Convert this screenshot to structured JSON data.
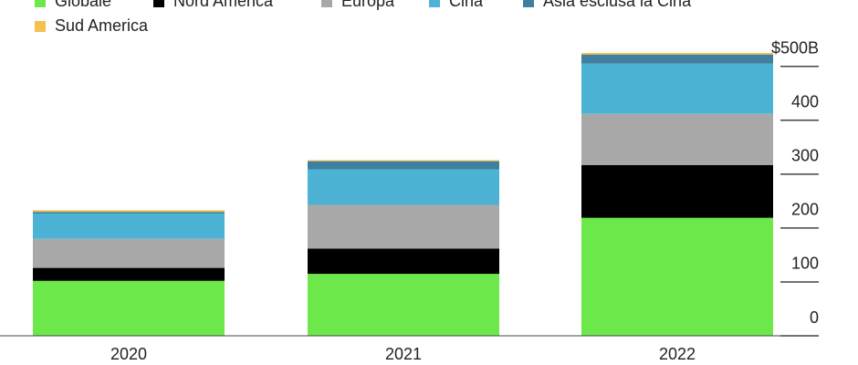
{
  "chart_data": {
    "type": "stacked-bar",
    "categories": [
      "2020",
      "2021",
      "2022"
    ],
    "series": [
      {
        "name": "Globale",
        "color": "#6de84a",
        "values": [
          102,
          115,
          219
        ]
      },
      {
        "name": "Nord America",
        "color": "#000000",
        "values": [
          24,
          47,
          98
        ]
      },
      {
        "name": "Europa",
        "color": "#a8a8a8",
        "values": [
          54,
          81,
          95
        ]
      },
      {
        "name": "Cina",
        "color": "#4db3d4",
        "values": [
          47,
          66,
          93
        ]
      },
      {
        "name": "Asia esclusa la Cina",
        "color": "#3f7f9f",
        "values": [
          3,
          15,
          17
        ]
      },
      {
        "name": "Sud America",
        "color": "#f2c14e",
        "values": [
          3,
          2,
          3
        ]
      }
    ],
    "ylim": [
      0,
      530
    ],
    "yticks": [
      0,
      100,
      200,
      300,
      400,
      {
        "value": 500,
        "label": "$500B"
      }
    ]
  }
}
